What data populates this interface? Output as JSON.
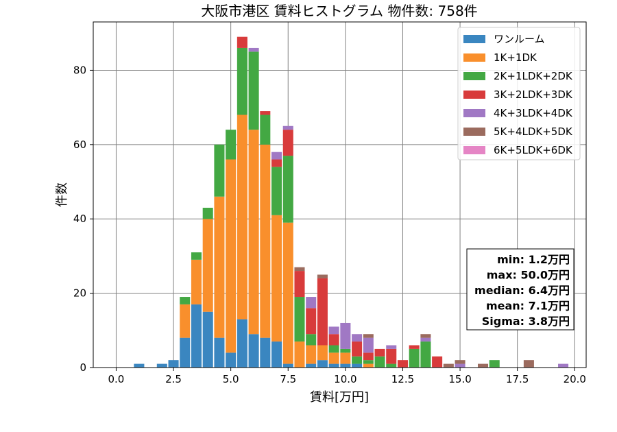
{
  "chart_data": {
    "type": "bar",
    "title": "大阪市港区 賃料ヒストグラム 物件数: 758件",
    "xlabel": "賃料[万円]",
    "ylabel": "件数",
    "xlim": [
      -1.0,
      20.5
    ],
    "ylim": [
      0,
      93
    ],
    "xticks": [
      0.0,
      2.5,
      5.0,
      7.5,
      10.0,
      12.5,
      15.0,
      17.5,
      20.0
    ],
    "xtick_labels": [
      "0.0",
      "2.5",
      "5.0",
      "7.5",
      "10.0",
      "12.5",
      "15.0",
      "17.5",
      "20.0"
    ],
    "yticks": [
      0,
      20,
      40,
      60,
      80
    ],
    "ytick_labels": [
      "0",
      "20",
      "40",
      "60",
      "80"
    ],
    "grid": true,
    "stacked": true,
    "bin_width": 0.5,
    "legend_position": "top-right",
    "x": [
      1.0,
      2.0,
      2.5,
      3.0,
      3.5,
      4.0,
      4.5,
      5.0,
      5.5,
      6.0,
      6.5,
      7.0,
      7.5,
      8.0,
      8.5,
      9.0,
      9.5,
      10.0,
      10.5,
      11.0,
      11.5,
      12.0,
      12.5,
      13.0,
      13.5,
      14.0,
      14.5,
      15.0,
      16.0,
      16.5,
      18.0,
      19.5
    ],
    "series": [
      {
        "name": "ワンルーム",
        "color": "#3a86c0",
        "values": [
          1,
          1,
          2,
          8,
          17,
          15,
          8,
          4,
          13,
          9,
          8,
          7,
          1,
          0,
          1,
          2,
          1,
          1,
          1,
          0,
          0,
          0,
          0,
          0,
          0,
          0,
          0,
          0,
          0,
          0,
          0,
          0
        ]
      },
      {
        "name": "1K+1DK",
        "color": "#f98f2c",
        "values": [
          0,
          0,
          0,
          9,
          12,
          25,
          38,
          52,
          55,
          55,
          52,
          34,
          38,
          7,
          5,
          4,
          3,
          3,
          0,
          1,
          0,
          0,
          0,
          0,
          0,
          0,
          0,
          0,
          0,
          0,
          0,
          0
        ]
      },
      {
        "name": "2K+1LDK+2DK",
        "color": "#43a843",
        "values": [
          0,
          0,
          0,
          2,
          2,
          3,
          14,
          8,
          18,
          21,
          8,
          13,
          18,
          12,
          3,
          0,
          2,
          1,
          2,
          1,
          3,
          1,
          0,
          5,
          7,
          0,
          0,
          0,
          0,
          2,
          0,
          0
        ]
      },
      {
        "name": "3K+2LDK+3DK",
        "color": "#d83b3b",
        "values": [
          0,
          0,
          0,
          0,
          0,
          0,
          0,
          0,
          3,
          0,
          1,
          2,
          7,
          7,
          7,
          18,
          3,
          0,
          4,
          2,
          2,
          4,
          2,
          1,
          0,
          3,
          0,
          0,
          0,
          0,
          0,
          0
        ]
      },
      {
        "name": "4K+3LDK+4DK",
        "color": "#a078c4",
        "values": [
          0,
          0,
          0,
          0,
          0,
          0,
          0,
          0,
          0,
          1,
          0,
          2,
          1,
          0,
          3,
          0,
          2,
          7,
          2,
          4,
          0,
          1,
          0,
          0,
          1,
          0,
          0,
          1,
          0,
          0,
          0,
          1
        ]
      },
      {
        "name": "5K+4LDK+5DK",
        "color": "#9b6b5e",
        "values": [
          0,
          0,
          0,
          0,
          0,
          0,
          0,
          0,
          0,
          0,
          0,
          0,
          0,
          1,
          0,
          1,
          0,
          0,
          0,
          1,
          0,
          0,
          0,
          0,
          1,
          0,
          1,
          1,
          1,
          0,
          2,
          0
        ]
      },
      {
        "name": "6K+5LDK+6DK",
        "color": "#e585c5",
        "values": [
          0,
          0,
          0,
          0,
          0,
          0,
          0,
          0,
          0,
          0,
          0,
          0,
          0,
          0,
          0,
          0,
          0,
          0,
          0,
          0,
          0,
          0,
          0,
          0,
          0,
          0,
          0,
          0,
          0,
          0,
          0,
          0
        ]
      }
    ],
    "stats": [
      "min: 1.2万円",
      "max: 50.0万円",
      "median: 6.4万円",
      "mean: 7.1万円",
      "Sigma: 3.8万円"
    ]
  }
}
